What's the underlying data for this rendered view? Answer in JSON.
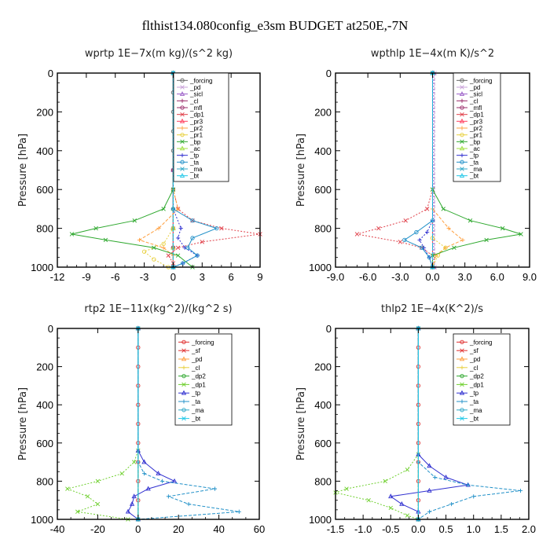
{
  "figure": {
    "title": "flthist134.080config_e3sm  BUDGET at250E,-7N"
  },
  "chart_data": [
    {
      "type": "line",
      "title": "wprtp   1E−7x(m kg)/(s^2 kg)",
      "ylabel": "Pressure [hPa]",
      "xlim": [
        -12,
        9
      ],
      "ylim": [
        1000,
        0
      ],
      "xticks": [
        -12,
        -9,
        -6,
        -3,
        0,
        3,
        6,
        9
      ],
      "xtick_labels": [
        "-12",
        "-9",
        "-6",
        "-3",
        "0",
        "3",
        "6",
        "9"
      ],
      "yticks": [
        0,
        200,
        400,
        600,
        800,
        1000
      ],
      "ytick_labels": [
        "0",
        "200",
        "400",
        "600",
        "800",
        "1000"
      ],
      "grid": false,
      "legend_position": "top-right",
      "series": [
        {
          "name": "_forcing",
          "color": "#666666",
          "p": [
            0,
            100,
            200,
            300,
            400,
            500,
            600,
            700,
            800,
            900,
            1000
          ],
          "x": [
            0,
            0,
            0,
            0,
            0,
            0,
            0,
            0,
            0,
            0,
            0
          ]
        },
        {
          "name": "_pd",
          "color": "#c8a0d8",
          "p": [
            0,
            500,
            800,
            900,
            1000
          ],
          "x": [
            0,
            0,
            0,
            0,
            0
          ]
        },
        {
          "name": "_sicl",
          "color": "#9a5cc8",
          "p": [
            0,
            500,
            800,
            900,
            1000
          ],
          "x": [
            0,
            0,
            0,
            0,
            0
          ]
        },
        {
          "name": "_cl",
          "color": "#9b2d6b",
          "p": [
            0,
            500,
            800,
            900,
            1000
          ],
          "x": [
            0,
            0,
            0,
            0,
            0
          ]
        },
        {
          "name": "_mfl",
          "color": "#9b2d6b",
          "p": [
            0,
            500,
            800,
            900,
            1000
          ],
          "x": [
            0,
            0,
            0,
            0,
            0
          ]
        },
        {
          "name": "_dp1",
          "color": "#e0404a",
          "p": [
            0,
            600,
            700,
            760,
            800,
            830,
            870,
            900,
            940,
            980,
            1000
          ],
          "x": [
            0,
            0,
            0.5,
            2,
            5,
            9,
            3,
            0.5,
            -0.5,
            0,
            0
          ]
        },
        {
          "name": "_pr3",
          "color": "#ff4060",
          "p": [
            0,
            800,
            900,
            1000
          ],
          "x": [
            0,
            0,
            0,
            0
          ]
        },
        {
          "name": "_pr2",
          "color": "#ffa040",
          "p": [
            0,
            600,
            700,
            800,
            860,
            900,
            940,
            1000
          ],
          "x": [
            0,
            0,
            0.5,
            -1.5,
            -3.5,
            -1,
            0,
            0
          ]
        },
        {
          "name": "_pr1",
          "color": "#e8d040",
          "p": [
            0,
            800,
            880,
            920,
            960,
            1000
          ],
          "x": [
            0,
            0,
            -1,
            -3,
            -2,
            -0.5
          ]
        },
        {
          "name": "_bp",
          "color": "#2ea82e",
          "p": [
            0,
            600,
            700,
            760,
            800,
            830,
            860,
            900,
            940,
            1000
          ],
          "x": [
            0,
            0,
            -1,
            -4,
            -8,
            -10.5,
            -7,
            -2,
            0.5,
            2
          ]
        },
        {
          "name": "_ac",
          "color": "#a0e040",
          "p": [
            0,
            700,
            800,
            900,
            1000
          ],
          "x": [
            0,
            0,
            0,
            0,
            0
          ]
        },
        {
          "name": "_tp",
          "color": "#3030d0",
          "p": [
            0,
            700,
            800,
            850,
            900,
            940,
            980,
            1000
          ],
          "x": [
            0,
            0,
            0.8,
            0.5,
            1.2,
            2.5,
            1,
            0
          ]
        },
        {
          "name": "_ta",
          "color": "#2090c8",
          "p": [
            0,
            700,
            760,
            800,
            850,
            900,
            940,
            980,
            1000
          ],
          "x": [
            0,
            0,
            2,
            4.5,
            2,
            1.5,
            2.5,
            1,
            0
          ]
        },
        {
          "name": "_ma",
          "color": "#30a8c8",
          "p": [
            0,
            1000
          ],
          "x": [
            0,
            0
          ]
        },
        {
          "name": "_bt",
          "color": "#20c8e8",
          "p": [
            0,
            1000
          ],
          "x": [
            0,
            0
          ]
        }
      ]
    },
    {
      "type": "line",
      "title": "wpthlp   1E−4x(m K)/s^2",
      "ylabel": "Pressure [hPa]",
      "xlim": [
        -9,
        9
      ],
      "ylim": [
        1000,
        0
      ],
      "xticks": [
        -9,
        -6,
        -3,
        0,
        3,
        6,
        9
      ],
      "xtick_labels": [
        "-9.0",
        "-6.0",
        "-3.0",
        "0.0",
        "3.0",
        "6.0",
        "9.0"
      ],
      "yticks": [
        0,
        200,
        400,
        600,
        800,
        1000
      ],
      "ytick_labels": [
        "0",
        "200",
        "400",
        "600",
        "800",
        "1000"
      ],
      "grid": false,
      "legend_position": "top-right",
      "series": [
        {
          "name": "_forcing",
          "color": "#666666",
          "p": [
            0,
            1000
          ],
          "x": [
            0,
            0
          ]
        },
        {
          "name": "_pd",
          "color": "#c8a0d8",
          "p": [
            0,
            1000
          ],
          "x": [
            0.2,
            0.2
          ]
        },
        {
          "name": "_sicl",
          "color": "#9a5cc8",
          "p": [
            0,
            1000
          ],
          "x": [
            0.1,
            0.1
          ]
        },
        {
          "name": "_cl",
          "color": "#9b2d6b",
          "p": [
            0,
            1000
          ],
          "x": [
            0,
            0
          ]
        },
        {
          "name": "_mfl",
          "color": "#9b2d6b",
          "p": [
            0,
            1000
          ],
          "x": [
            0,
            0
          ]
        },
        {
          "name": "_dp1",
          "color": "#e0404a",
          "p": [
            0,
            600,
            700,
            760,
            800,
            830,
            870,
            900,
            940,
            1000
          ],
          "x": [
            0,
            0,
            -0.5,
            -2.5,
            -5,
            -7,
            -3,
            -1,
            0,
            0
          ]
        },
        {
          "name": "_pr3",
          "color": "#ff4060",
          "p": [
            0,
            1000
          ],
          "x": [
            0,
            0
          ]
        },
        {
          "name": "_pr2",
          "color": "#ffa040",
          "p": [
            0,
            700,
            800,
            860,
            900,
            940,
            1000
          ],
          "x": [
            0,
            0,
            1.5,
            2.8,
            1.2,
            0.3,
            0
          ]
        },
        {
          "name": "_pr1",
          "color": "#e8d040",
          "p": [
            0,
            850,
            900,
            940,
            1000
          ],
          "x": [
            0,
            0,
            1.2,
            0.5,
            0
          ]
        },
        {
          "name": "_bp",
          "color": "#2ea82e",
          "p": [
            0,
            600,
            700,
            760,
            800,
            830,
            860,
            900,
            940,
            1000
          ],
          "x": [
            0,
            0,
            1,
            3.5,
            6.5,
            8.2,
            5,
            2,
            0,
            0
          ]
        },
        {
          "name": "_ac",
          "color": "#a0e040",
          "p": [
            0,
            1000
          ],
          "x": [
            0,
            0
          ]
        },
        {
          "name": "_tp",
          "color": "#3030d0",
          "p": [
            0,
            760,
            820,
            860,
            900,
            950,
            1000
          ],
          "x": [
            0,
            0,
            -0.5,
            -1.2,
            -0.8,
            -0.3,
            0
          ]
        },
        {
          "name": "_ta",
          "color": "#2090c8",
          "p": [
            0,
            760,
            820,
            860,
            900,
            950,
            1000
          ],
          "x": [
            0,
            0,
            -1.5,
            -2.6,
            -1,
            -0.3,
            0
          ]
        },
        {
          "name": "_ma",
          "color": "#30a8c8",
          "p": [
            0,
            1000
          ],
          "x": [
            0,
            0
          ]
        },
        {
          "name": "_bt",
          "color": "#20c8e8",
          "p": [
            0,
            1000
          ],
          "x": [
            0,
            0
          ]
        }
      ]
    },
    {
      "type": "line",
      "title": "rtp2   1E−11x(kg^2)/(kg^2 s)",
      "ylabel": "Pressure [hPa]",
      "xlim": [
        -40,
        60
      ],
      "ylim": [
        1000,
        0
      ],
      "xticks": [
        -40,
        -20,
        0,
        20,
        40,
        60
      ],
      "xtick_labels": [
        "-40",
        "-20",
        "0",
        "20",
        "40",
        "60"
      ],
      "yticks": [
        0,
        200,
        400,
        600,
        800,
        1000
      ],
      "ytick_labels": [
        "0",
        "200",
        "400",
        "600",
        "800",
        "1000"
      ],
      "grid": false,
      "legend_position": "top-right",
      "series": [
        {
          "name": "_forcing",
          "color": "#e03030",
          "p": [
            0,
            100,
            200,
            300,
            400,
            500,
            600,
            700,
            800,
            900,
            1000
          ],
          "x": [
            0,
            0,
            0,
            0,
            0,
            0,
            0,
            0,
            0,
            0,
            0
          ]
        },
        {
          "name": "_sf",
          "color": "#e03030",
          "p": [
            0,
            1000
          ],
          "x": [
            0,
            0
          ]
        },
        {
          "name": "_pd",
          "color": "#ffa040",
          "p": [
            0,
            1000
          ],
          "x": [
            0,
            0
          ]
        },
        {
          "name": "_cl",
          "color": "#e8d040",
          "p": [
            0,
            1000
          ],
          "x": [
            0,
            0
          ]
        },
        {
          "name": "_dp2",
          "color": "#2ea82e",
          "p": [
            0,
            1000
          ],
          "x": [
            0,
            0
          ]
        },
        {
          "name": "_dp1",
          "color": "#70d030",
          "p": [
            0,
            640,
            700,
            760,
            800,
            840,
            880,
            920,
            960,
            1000
          ],
          "x": [
            0,
            0,
            -2,
            -8,
            -20,
            -35,
            -25,
            -20,
            -30,
            -5
          ]
        },
        {
          "name": "_tp",
          "color": "#3030d0",
          "p": [
            0,
            640,
            700,
            760,
            800,
            840,
            880,
            920,
            960,
            1000
          ],
          "x": [
            0,
            0,
            3,
            10,
            18,
            5,
            -2,
            -3,
            -5,
            0
          ]
        },
        {
          "name": "_ta",
          "color": "#2090c8",
          "p": [
            0,
            700,
            760,
            800,
            840,
            880,
            920,
            960,
            1000
          ],
          "x": [
            0,
            0,
            3,
            12,
            38,
            15,
            25,
            50,
            0
          ]
        },
        {
          "name": "_ma",
          "color": "#30a8c8",
          "p": [
            0,
            1000
          ],
          "x": [
            0,
            0
          ]
        },
        {
          "name": "_bt",
          "color": "#20c8e8",
          "p": [
            0,
            1000
          ],
          "x": [
            0,
            0
          ]
        }
      ]
    },
    {
      "type": "line",
      "title": "thlp2   1E−4x(K^2)/s",
      "ylabel": "Pressure [hPa]",
      "xlim": [
        -1.5,
        2
      ],
      "ylim": [
        1000,
        0
      ],
      "xticks": [
        -1.5,
        -1.0,
        -0.5,
        0,
        0.5,
        1.0,
        1.5,
        2.0
      ],
      "xtick_labels": [
        "-1.5",
        "-1.0",
        "-0.5",
        "0.0",
        "0.5",
        "1.0",
        "1.5",
        "2.0"
      ],
      "yticks": [
        0,
        200,
        400,
        600,
        800,
        1000
      ],
      "ytick_labels": [
        "0",
        "200",
        "400",
        "600",
        "800",
        "1000"
      ],
      "grid": false,
      "legend_position": "top-right",
      "series": [
        {
          "name": "_forcing",
          "color": "#e03030",
          "p": [
            0,
            100,
            200,
            300,
            400,
            500,
            600,
            700,
            800,
            900,
            1000
          ],
          "x": [
            0,
            0,
            0,
            0,
            0,
            0,
            0,
            0,
            0,
            0,
            0
          ]
        },
        {
          "name": "_sf",
          "color": "#e03030",
          "p": [
            0,
            1000
          ],
          "x": [
            0,
            0
          ]
        },
        {
          "name": "_pd",
          "color": "#ffa040",
          "p": [
            0,
            1000
          ],
          "x": [
            0,
            0
          ]
        },
        {
          "name": "_cl",
          "color": "#e8d040",
          "p": [
            0,
            1000
          ],
          "x": [
            0,
            0
          ]
        },
        {
          "name": "_dp2",
          "color": "#2ea82e",
          "p": [
            0,
            1000
          ],
          "x": [
            0,
            0
          ]
        },
        {
          "name": "_dp1",
          "color": "#70d030",
          "p": [
            0,
            660,
            740,
            800,
            840,
            860,
            900,
            940,
            980,
            1000
          ],
          "x": [
            0,
            0,
            -0.2,
            -0.6,
            -1.3,
            -1.5,
            -0.9,
            -0.5,
            -0.2,
            0
          ]
        },
        {
          "name": "_tp",
          "color": "#3030d0",
          "p": [
            0,
            660,
            720,
            780,
            820,
            850,
            880,
            920,
            960,
            1000
          ],
          "x": [
            0,
            0,
            0.2,
            0.5,
            0.9,
            0.2,
            -0.5,
            -0.3,
            0,
            0
          ]
        },
        {
          "name": "_ta",
          "color": "#2090c8",
          "p": [
            0,
            700,
            780,
            820,
            850,
            880,
            920,
            960,
            1000
          ],
          "x": [
            0,
            0,
            0.3,
            0.9,
            1.85,
            1.0,
            0.6,
            0.2,
            0
          ]
        },
        {
          "name": "_ma",
          "color": "#30a8c8",
          "p": [
            0,
            1000
          ],
          "x": [
            0,
            0
          ]
        },
        {
          "name": "_bt",
          "color": "#20c8e8",
          "p": [
            0,
            1000
          ],
          "x": [
            0,
            0
          ]
        }
      ]
    }
  ]
}
